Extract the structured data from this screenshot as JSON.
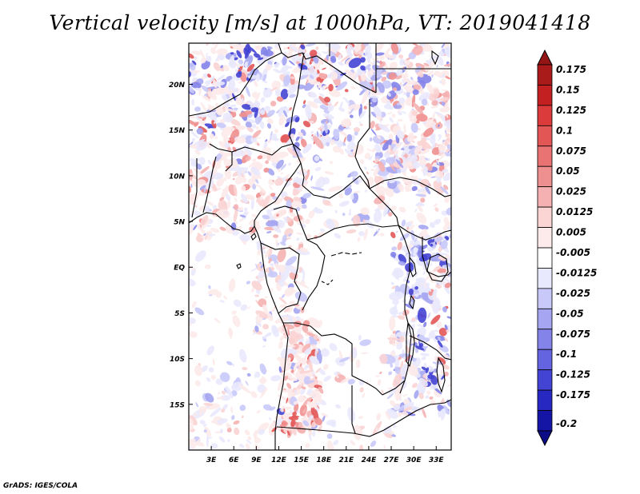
{
  "title": "Vertical velocity [m/s] at 1000hPa, VT: 2019041418",
  "credit": "GrADS: IGES/COLA",
  "map": {
    "lon_range": [
      0,
      35
    ],
    "lat_range": [
      -20,
      24.5
    ],
    "x_ticks": [
      {
        "lon": 3,
        "label": "3E"
      },
      {
        "lon": 6,
        "label": "6E"
      },
      {
        "lon": 9,
        "label": "9E"
      },
      {
        "lon": 12,
        "label": "12E"
      },
      {
        "lon": 15,
        "label": "15E"
      },
      {
        "lon": 18,
        "label": "18E"
      },
      {
        "lon": 21,
        "label": "21E"
      },
      {
        "lon": 24,
        "label": "24E"
      },
      {
        "lon": 27,
        "label": "27E"
      },
      {
        "lon": 30,
        "label": "30E"
      },
      {
        "lon": 33,
        "label": "33E"
      }
    ],
    "y_ticks": [
      {
        "lat": 20,
        "label": "20N"
      },
      {
        "lat": 15,
        "label": "15N"
      },
      {
        "lat": 10,
        "label": "10N"
      },
      {
        "lat": 5,
        "label": "5N"
      },
      {
        "lat": 0,
        "label": "EQ"
      },
      {
        "lat": -5,
        "label": "5S"
      },
      {
        "lat": -10,
        "label": "10S"
      },
      {
        "lat": -15,
        "label": "15S"
      }
    ]
  },
  "colorbar": {
    "levels": [
      {
        "label": "0.175",
        "color": "#a91a1a"
      },
      {
        "label": "0.15",
        "color": "#c32121"
      },
      {
        "label": "0.125",
        "color": "#dc3b3b"
      },
      {
        "label": "0.1",
        "color": "#e35656"
      },
      {
        "label": "0.075",
        "color": "#e97272"
      },
      {
        "label": "0.05",
        "color": "#ef9090"
      },
      {
        "label": "0.025",
        "color": "#f5b1b1"
      },
      {
        "label": "0.0125",
        "color": "#fbd4d4"
      },
      {
        "label": "0.005",
        "color": "#fdeaea"
      },
      {
        "label": "-0.005",
        "color": "#ffffff"
      },
      {
        "label": "-0.0125",
        "color": "#e9e9fd"
      },
      {
        "label": "-0.025",
        "color": "#c9c9f9"
      },
      {
        "label": "-0.05",
        "color": "#a5a5f1"
      },
      {
        "label": "-0.075",
        "color": "#8383e9"
      },
      {
        "label": "-0.1",
        "color": "#6464e1"
      },
      {
        "label": "-0.125",
        "color": "#4444d4"
      },
      {
        "label": "-0.175",
        "color": "#2727c2"
      },
      {
        "label": "-0.2",
        "color": "#1515a5"
      }
    ],
    "top_color": "#941515",
    "bottom_color": "#0c0c87"
  }
}
